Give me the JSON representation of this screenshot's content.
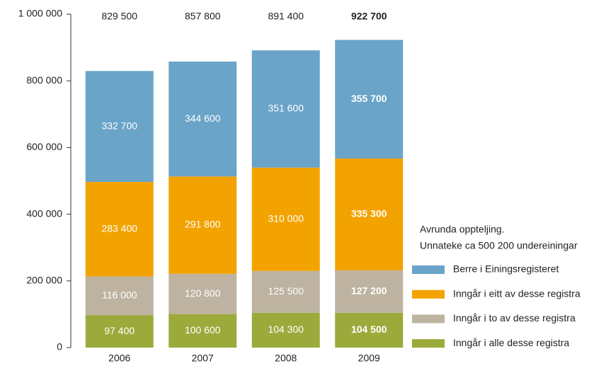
{
  "chart_data": {
    "type": "stacked_bar",
    "categories": [
      "2006",
      "2007",
      "2008",
      "2009"
    ],
    "series": [
      {
        "name": "Inngår i alle desse registra",
        "color": "#9caa3c",
        "values": [
          97400,
          100600,
          104300,
          104500
        ],
        "value_labels": [
          "97 400",
          "100 600",
          "104 300",
          "104 500"
        ]
      },
      {
        "name": "Inngår i to av desse registra",
        "color": "#bdb3a0",
        "values": [
          116000,
          120800,
          125500,
          127200
        ],
        "value_labels": [
          "116 000",
          "120 800",
          "125 500",
          "127 200"
        ]
      },
      {
        "name": "Inngår i eitt av desse registra",
        "color": "#f3a300",
        "values": [
          283400,
          291800,
          310000,
          335300
        ],
        "value_labels": [
          "283 400",
          "291 800",
          "310 000",
          "335 300"
        ]
      },
      {
        "name": "Berre i Einingsregisteret",
        "color": "#6aa4c8",
        "values": [
          332700,
          344600,
          351600,
          355700
        ],
        "value_labels": [
          "332 700",
          "344 600",
          "351 600",
          "355 700"
        ]
      }
    ],
    "totals": [
      829500,
      857800,
      891400,
      922700
    ],
    "total_labels": [
      "829 500",
      "857 800",
      "891 400",
      "922 700"
    ],
    "annotations": [
      "Avrunda oppteljing.",
      "Unnateke ca 500 200 undereiningar"
    ],
    "ylim": [
      0,
      1000000
    ],
    "yticks": [
      0,
      {
        "value": 200000,
        "label": "200 000"
      },
      {
        "value": 400000,
        "label": "400 000"
      },
      {
        "value": 600000,
        "label": "600 000"
      },
      {
        "value": 800000,
        "label": "800 000"
      },
      {
        "value": 1000000,
        "label": "1 000 000"
      }
    ],
    "grid": false
  }
}
